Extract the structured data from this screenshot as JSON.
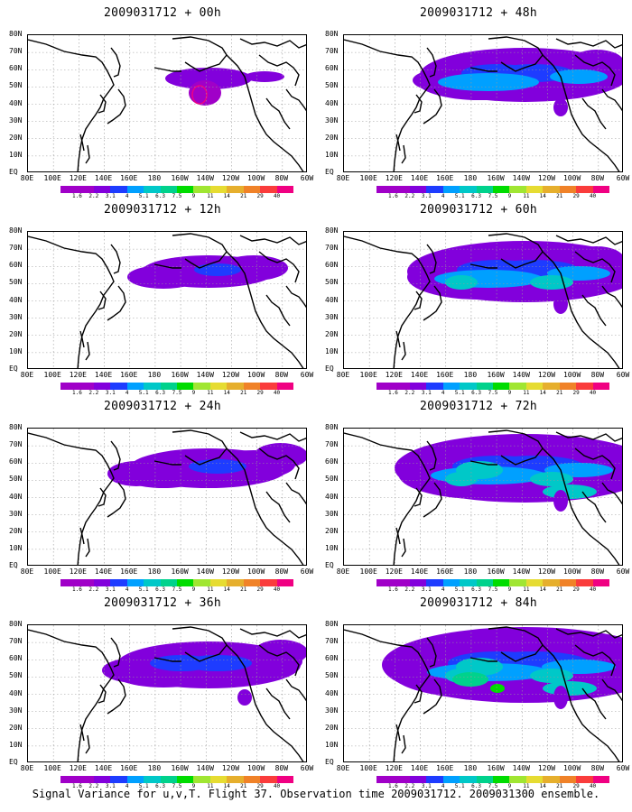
{
  "panels": [
    {
      "title": "2009031712 + 00h",
      "intensity": 0
    },
    {
      "title": "2009031712 + 48h",
      "intensity": 4
    },
    {
      "title": "2009031712 + 12h",
      "intensity": 1
    },
    {
      "title": "2009031712 + 60h",
      "intensity": 5
    },
    {
      "title": "2009031712 + 24h",
      "intensity": 2
    },
    {
      "title": "2009031712 + 72h",
      "intensity": 6
    },
    {
      "title": "2009031712 + 36h",
      "intensity": 3
    },
    {
      "title": "2009031712 + 84h",
      "intensity": 7
    }
  ],
  "lat_labels": [
    "80N",
    "70N",
    "60N",
    "50N",
    "40N",
    "30N",
    "20N",
    "10N",
    "EQ"
  ],
  "lon_labels": [
    "80E",
    "100E",
    "120E",
    "140E",
    "160E",
    "180",
    "160W",
    "140W",
    "120W",
    "100W",
    "80W",
    "60W"
  ],
  "colorbar": {
    "labels": [
      "1.6",
      "2.2",
      "3.1",
      "4",
      "5.1",
      "6.3",
      "7.5",
      "9",
      "11",
      "14",
      "21",
      "29",
      "40"
    ],
    "colors": [
      "#a000c8",
      "#8200dc",
      "#1e3cff",
      "#00a0ff",
      "#00c8c8",
      "#00d28c",
      "#00dc00",
      "#a0e632",
      "#e6dc32",
      "#e6af2d",
      "#f08228",
      "#fa3c3c",
      "#f00082"
    ]
  },
  "caption": "Signal Variance for u,v,T. Flight 37. Observation time 2009031712. 2009031300 ensemble."
}
